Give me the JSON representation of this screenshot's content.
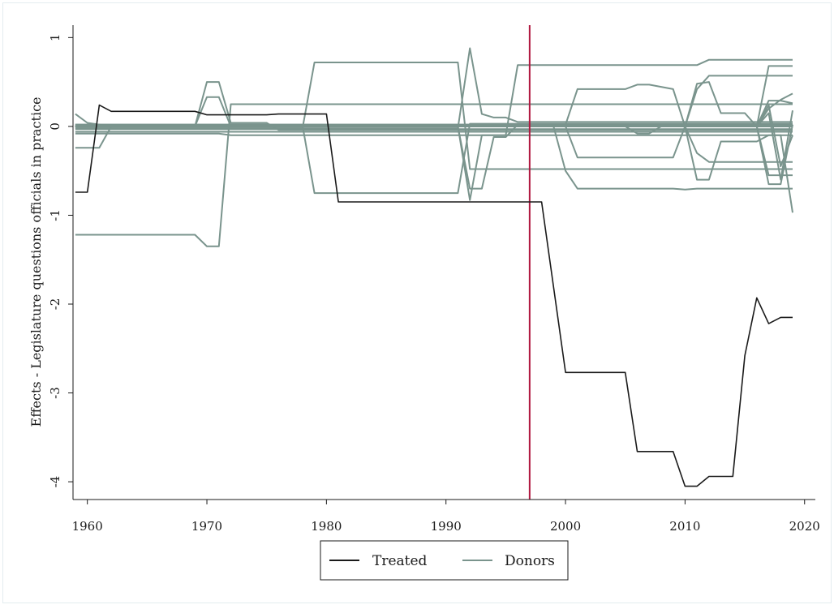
{
  "chart_data": {
    "type": "line",
    "title": "",
    "xlabel": "",
    "ylabel": "Effects - Legislature questions officials in practice",
    "xlim": [
      1958.8,
      2020.9
    ],
    "ylim": [
      -4.2,
      1.14
    ],
    "xticks": [
      1960,
      1970,
      1980,
      1990,
      2000,
      2010,
      2020
    ],
    "yticks": [
      1,
      0,
      -1,
      -2,
      -3,
      -4
    ],
    "grid": false,
    "legend": {
      "placement": "bottom-center",
      "entries": [
        "Treated",
        "Donors"
      ]
    },
    "treatment_year": 1997,
    "colors": {
      "treated": "#1a1a1a",
      "donors": "#7a948d",
      "treatment_line": "#b0173f"
    },
    "treated": {
      "name": "Treated",
      "x": [
        1959,
        1960,
        1961,
        1962,
        1969,
        1970,
        1971,
        1975,
        1976,
        1980,
        1981,
        1997,
        1998,
        2000,
        2005,
        2006,
        2009,
        2010,
        2011,
        2012,
        2014,
        2015,
        2016,
        2017,
        2018,
        2019
      ],
      "y": [
        -0.74,
        -0.74,
        0.24,
        0.17,
        0.17,
        0.13,
        0.13,
        0.13,
        0.14,
        0.14,
        -0.85,
        -0.85,
        -0.85,
        -2.77,
        -2.77,
        -3.66,
        -3.66,
        -4.05,
        -4.05,
        -3.94,
        -3.94,
        -2.58,
        -1.93,
        -2.22,
        -2.15,
        -2.15
      ]
    },
    "donors": [
      {
        "name": "Donors",
        "x": [
          1959,
          1969,
          1970,
          1971,
          1972,
          2019
        ],
        "y": [
          -1.22,
          -1.22,
          -1.35,
          -1.35,
          0.25,
          0.25
        ]
      },
      {
        "name": "Donors",
        "x": [
          1959,
          1969,
          1970,
          1971,
          1972,
          1975,
          1976,
          1978,
          2019
        ],
        "y": [
          0.0,
          0.0,
          0.5,
          0.5,
          0.04,
          0.04,
          -0.04,
          -0.04,
          -0.04
        ]
      },
      {
        "name": "Donors",
        "x": [
          1959,
          1969,
          1970,
          1971,
          1972,
          2019
        ],
        "y": [
          0.0,
          0.0,
          0.33,
          0.33,
          0.0,
          0.0
        ]
      },
      {
        "name": "Donors",
        "x": [
          1959,
          1960,
          1961,
          1962,
          2019
        ],
        "y": [
          -0.24,
          -0.24,
          -0.24,
          0.0,
          0.0
        ]
      },
      {
        "name": "Donors",
        "x": [
          1959,
          1960,
          1962,
          2019
        ],
        "y": [
          0.14,
          0.04,
          0.0,
          0.0
        ]
      },
      {
        "name": "Donors",
        "x": [
          1959,
          1978,
          1979,
          1991,
          1992,
          1997,
          2019
        ],
        "y": [
          -0.02,
          -0.02,
          0.72,
          0.72,
          -0.48,
          -0.48,
          -0.48
        ]
      },
      {
        "name": "Donors",
        "x": [
          1959,
          1978,
          1979,
          1991,
          1992,
          2019
        ],
        "y": [
          0.01,
          0.01,
          -0.75,
          -0.75,
          0.03,
          0.03
        ]
      },
      {
        "name": "Donors",
        "x": [
          1959,
          1991,
          1992,
          1993,
          1994,
          1995,
          1996,
          1997,
          2011,
          2012,
          2019
        ],
        "y": [
          -0.02,
          -0.02,
          0.88,
          0.14,
          0.1,
          0.1,
          0.05,
          0.05,
          0.05,
          0.05,
          0.05
        ]
      },
      {
        "name": "Donors",
        "x": [
          1959,
          1991,
          1992,
          1993,
          1994,
          1995,
          1996,
          1997,
          2010,
          2011,
          2012,
          2019
        ],
        "y": [
          0.0,
          0.0,
          -0.83,
          -0.1,
          -0.1,
          -0.1,
          0.69,
          0.69,
          0.69,
          0.69,
          0.75,
          0.75
        ]
      },
      {
        "name": "Donors",
        "x": [
          1959,
          1991,
          1992,
          1993,
          1994,
          1995,
          1996,
          1997,
          2019
        ],
        "y": [
          0.0,
          0.0,
          -0.7,
          -0.7,
          -0.12,
          -0.12,
          0.02,
          0.02,
          0.02
        ]
      },
      {
        "name": "Donors",
        "x": [
          1959,
          1997,
          1998,
          1999,
          2000,
          2001,
          2009,
          2010,
          2019
        ],
        "y": [
          0.02,
          0.02,
          0.02,
          0.02,
          0.0,
          -0.35,
          -0.35,
          0.0,
          0.0
        ]
      },
      {
        "name": "Donors",
        "x": [
          1959,
          1997,
          1998,
          1999,
          2000,
          2001,
          2009,
          2010,
          2011,
          2019
        ],
        "y": [
          0.0,
          0.0,
          0.0,
          0.0,
          -0.5,
          -0.7,
          -0.7,
          -0.71,
          -0.7,
          -0.7
        ]
      },
      {
        "name": "Donors",
        "x": [
          1959,
          1999,
          2000,
          2001,
          2005,
          2006,
          2007,
          2009,
          2010,
          2019
        ],
        "y": [
          0.02,
          0.02,
          0.02,
          0.42,
          0.42,
          0.47,
          0.47,
          0.42,
          0.0,
          0.0
        ]
      },
      {
        "name": "Donors",
        "x": [
          1959,
          2005,
          2006,
          2007,
          2008,
          2010,
          2019
        ],
        "y": [
          0.0,
          0.0,
          -0.08,
          -0.08,
          0.0,
          0.0,
          0.0
        ]
      },
      {
        "name": "Donors",
        "x": [
          1959,
          2010,
          2011,
          2012,
          2013,
          2015,
          2016,
          2017,
          2018,
          2019
        ],
        "y": [
          0.0,
          0.0,
          0.48,
          0.5,
          0.15,
          0.15,
          0.0,
          -0.65,
          -0.65,
          0.02
        ]
      },
      {
        "name": "Donors",
        "x": [
          1959,
          2010,
          2011,
          2012,
          2013,
          2016,
          2017,
          2018,
          2019
        ],
        "y": [
          0.0,
          0.0,
          -0.6,
          -0.6,
          -0.17,
          -0.17,
          -0.1,
          -0.1,
          -0.97
        ]
      },
      {
        "name": "Donors",
        "x": [
          1959,
          2010,
          2011,
          2012,
          2016,
          2017,
          2019
        ],
        "y": [
          0.0,
          0.0,
          0.42,
          0.57,
          0.57,
          0.57,
          0.57
        ]
      },
      {
        "name": "Donors",
        "x": [
          1959,
          2010,
          2011,
          2012,
          2016,
          2019
        ],
        "y": [
          0.0,
          0.0,
          -0.3,
          -0.4,
          -0.4,
          -0.4
        ]
      },
      {
        "name": "Donors",
        "x": [
          1959,
          2016,
          2017,
          2019
        ],
        "y": [
          0.0,
          0.0,
          0.68,
          0.68
        ]
      },
      {
        "name": "Donors",
        "x": [
          1959,
          2016,
          2017,
          2018,
          2019
        ],
        "y": [
          0.0,
          0.0,
          0.29,
          0.29,
          0.26
        ]
      },
      {
        "name": "Donors",
        "x": [
          1959,
          2016,
          2017,
          2018,
          2019
        ],
        "y": [
          0.0,
          0.0,
          0.24,
          -0.45,
          -0.1
        ]
      },
      {
        "name": "Donors",
        "x": [
          1959,
          2016,
          2017,
          2018,
          2019
        ],
        "y": [
          0.0,
          0.0,
          -0.55,
          -0.55,
          -0.55
        ]
      },
      {
        "name": "Donors",
        "x": [
          1959,
          2016,
          2017,
          2018,
          2019
        ],
        "y": [
          0.0,
          0.0,
          0.2,
          0.3,
          0.37
        ]
      },
      {
        "name": "Donors",
        "x": [
          1959,
          2016,
          2017,
          2018,
          2019
        ],
        "y": [
          0.0,
          0.0,
          0.15,
          -0.6,
          0.18
        ]
      },
      {
        "name": "Donors",
        "x": [
          1959,
          1979,
          2019
        ],
        "y": [
          -0.06,
          -0.06,
          -0.06
        ]
      },
      {
        "name": "Donors",
        "x": [
          1959,
          1971,
          1972,
          2019
        ],
        "y": [
          -0.08,
          -0.08,
          -0.1,
          -0.1
        ]
      },
      {
        "name": "Donors",
        "x": [
          1959,
          2019
        ],
        "y": [
          0.02,
          0.02
        ]
      },
      {
        "name": "Donors",
        "x": [
          1959,
          2019
        ],
        "y": [
          -0.03,
          -0.03
        ]
      }
    ]
  }
}
